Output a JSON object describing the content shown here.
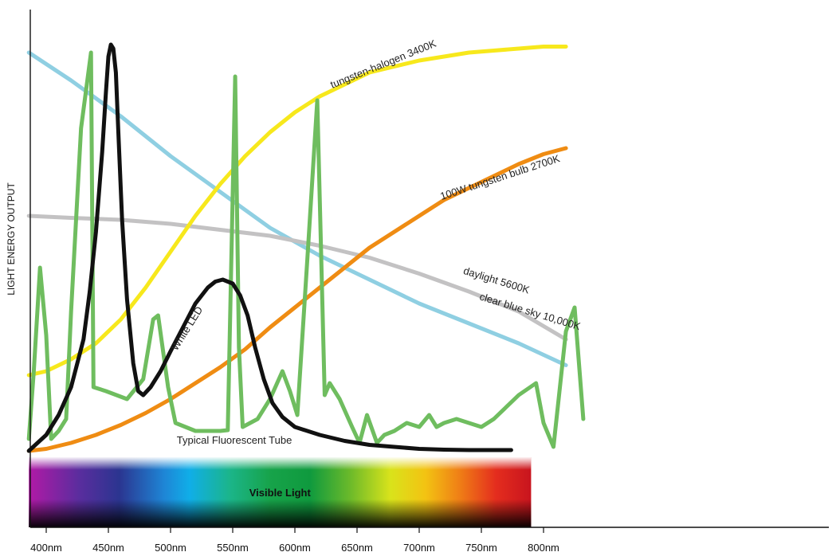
{
  "chart_data": {
    "type": "line",
    "title": "",
    "xlabel": "",
    "ylabel": "LIGHT ENERGY OUTPUT",
    "xlim": [
      386,
      818
    ],
    "ylim": [
      0,
      100
    ],
    "grid": false,
    "legend": "none",
    "x_ticks": [
      {
        "value": 400,
        "label": "400nm"
      },
      {
        "value": 450,
        "label": "450nm"
      },
      {
        "value": 500,
        "label": "500nm"
      },
      {
        "value": 550,
        "label": "550nm"
      },
      {
        "value": 600,
        "label": "600nm"
      },
      {
        "value": 650,
        "label": "650nm"
      },
      {
        "value": 700,
        "label": "700nm"
      },
      {
        "value": 750,
        "label": "750nm"
      },
      {
        "value": 800,
        "label": "800nm"
      }
    ],
    "spectrum_band": {
      "label": "Visible Light",
      "x_start": 386,
      "x_end": 790
    },
    "series": [
      {
        "name": "tungsten-halogen 3400K",
        "color": "#f7e81c",
        "label_at": {
          "x": 630,
          "y": 91
        },
        "label_angle": -22,
        "points": [
          [
            386,
            19
          ],
          [
            400,
            20
          ],
          [
            420,
            23
          ],
          [
            440,
            27
          ],
          [
            460,
            33
          ],
          [
            480,
            41
          ],
          [
            500,
            50
          ],
          [
            520,
            59
          ],
          [
            540,
            67
          ],
          [
            560,
            74
          ],
          [
            580,
            80
          ],
          [
            600,
            85
          ],
          [
            620,
            89
          ],
          [
            640,
            92
          ],
          [
            660,
            95
          ],
          [
            680,
            96.5
          ],
          [
            700,
            98
          ],
          [
            720,
            99
          ],
          [
            740,
            100
          ],
          [
            760,
            100.5
          ],
          [
            780,
            101
          ],
          [
            800,
            101.5
          ],
          [
            818,
            101.5
          ]
        ]
      },
      {
        "name": "100W tungsten bulb 2700K",
        "color": "#ef8c13",
        "label_at": {
          "x": 718,
          "y": 63
        },
        "label_angle": -18,
        "points": [
          [
            386,
            0
          ],
          [
            400,
            0.5
          ],
          [
            420,
            2
          ],
          [
            440,
            4
          ],
          [
            460,
            6.5
          ],
          [
            480,
            9.5
          ],
          [
            500,
            13
          ],
          [
            520,
            17
          ],
          [
            540,
            21
          ],
          [
            560,
            25.5
          ],
          [
            580,
            31
          ],
          [
            600,
            36
          ],
          [
            620,
            41
          ],
          [
            640,
            46
          ],
          [
            660,
            51
          ],
          [
            680,
            55
          ],
          [
            700,
            59
          ],
          [
            720,
            63
          ],
          [
            740,
            66
          ],
          [
            760,
            69
          ],
          [
            780,
            72
          ],
          [
            800,
            74.5
          ],
          [
            818,
            76
          ]
        ]
      },
      {
        "name": "daylight 5600K",
        "color": "#c3c2c3",
        "label_at": {
          "x": 735,
          "y": 44.5
        },
        "label_angle": 17,
        "points": [
          [
            386,
            59
          ],
          [
            420,
            58.5
          ],
          [
            460,
            58
          ],
          [
            500,
            57
          ],
          [
            540,
            55.5
          ],
          [
            580,
            54
          ],
          [
            620,
            51.5
          ],
          [
            660,
            48.5
          ],
          [
            700,
            44.5
          ],
          [
            740,
            40
          ],
          [
            780,
            35
          ],
          [
            818,
            28
          ]
        ]
      },
      {
        "name": "clear blue sky 10,000K",
        "color": "#8fcfe2",
        "label_at": {
          "x": 748,
          "y": 38
        },
        "label_angle": 17,
        "points": [
          [
            386,
            100
          ],
          [
            420,
            93
          ],
          [
            460,
            84
          ],
          [
            500,
            74
          ],
          [
            540,
            65
          ],
          [
            580,
            56
          ],
          [
            620,
            49
          ],
          [
            660,
            43
          ],
          [
            700,
            37
          ],
          [
            740,
            32
          ],
          [
            780,
            27
          ],
          [
            818,
            21.5
          ]
        ]
      },
      {
        "name": "White LED",
        "color": "#111111",
        "label_at": {
          "x": 505,
          "y": 25
        },
        "label_angle": -58,
        "points": [
          [
            386,
            0
          ],
          [
            400,
            4
          ],
          [
            410,
            9
          ],
          [
            420,
            16
          ],
          [
            430,
            28
          ],
          [
            435,
            40
          ],
          [
            440,
            55
          ],
          [
            445,
            75
          ],
          [
            448,
            90
          ],
          [
            450,
            99
          ],
          [
            452,
            102
          ],
          [
            454,
            101
          ],
          [
            456,
            95
          ],
          [
            458,
            80
          ],
          [
            461,
            58
          ],
          [
            465,
            38
          ],
          [
            470,
            22
          ],
          [
            474,
            15
          ],
          [
            478,
            14
          ],
          [
            484,
            16
          ],
          [
            492,
            20
          ],
          [
            500,
            25
          ],
          [
            510,
            31
          ],
          [
            520,
            37
          ],
          [
            530,
            41
          ],
          [
            536,
            42.5
          ],
          [
            542,
            43
          ],
          [
            550,
            42
          ],
          [
            556,
            39
          ],
          [
            562,
            34
          ],
          [
            568,
            26
          ],
          [
            575,
            18
          ],
          [
            582,
            12
          ],
          [
            590,
            8.5
          ],
          [
            600,
            6
          ],
          [
            620,
            4
          ],
          [
            640,
            2.5
          ],
          [
            660,
            1.5
          ],
          [
            680,
            1
          ],
          [
            700,
            0.5
          ],
          [
            720,
            0.3
          ],
          [
            740,
            0.2
          ],
          [
            774,
            0.2
          ]
        ]
      },
      {
        "name": "Typical Fluorescent Tube",
        "color": "#6fbd5f",
        "label_at": {
          "x": 505,
          "y": 1.8
        },
        "label_angle": 0,
        "points": [
          [
            386,
            3
          ],
          [
            390,
            20
          ],
          [
            395,
            46
          ],
          [
            400,
            29
          ],
          [
            404,
            3
          ],
          [
            410,
            5
          ],
          [
            416,
            8
          ],
          [
            420,
            35
          ],
          [
            428,
            81
          ],
          [
            436,
            100
          ],
          [
            438,
            16
          ],
          [
            448,
            15
          ],
          [
            465,
            13
          ],
          [
            478,
            18
          ],
          [
            486,
            33
          ],
          [
            490,
            34
          ],
          [
            498,
            16
          ],
          [
            504,
            7
          ],
          [
            520,
            5
          ],
          [
            540,
            5
          ],
          [
            546,
            5.2
          ],
          [
            552,
            94
          ],
          [
            555,
            26
          ],
          [
            558,
            6
          ],
          [
            570,
            8
          ],
          [
            580,
            13
          ],
          [
            590,
            20
          ],
          [
            596,
            15
          ],
          [
            602,
            9
          ],
          [
            610,
            48
          ],
          [
            618,
            88
          ],
          [
            624,
            14
          ],
          [
            628,
            17
          ],
          [
            636,
            13
          ],
          [
            646,
            6
          ],
          [
            652,
            2
          ],
          [
            658,
            9
          ],
          [
            666,
            2
          ],
          [
            672,
            4
          ],
          [
            680,
            5
          ],
          [
            690,
            7
          ],
          [
            700,
            6
          ],
          [
            708,
            9
          ],
          [
            714,
            6
          ],
          [
            720,
            7
          ],
          [
            730,
            8
          ],
          [
            740,
            7
          ],
          [
            750,
            6
          ],
          [
            760,
            8
          ],
          [
            770,
            11
          ],
          [
            780,
            14
          ],
          [
            794,
            17
          ],
          [
            800,
            7
          ],
          [
            808,
            1
          ],
          [
            818,
            30
          ],
          [
            825,
            36
          ],
          [
            832,
            8
          ]
        ]
      }
    ]
  }
}
